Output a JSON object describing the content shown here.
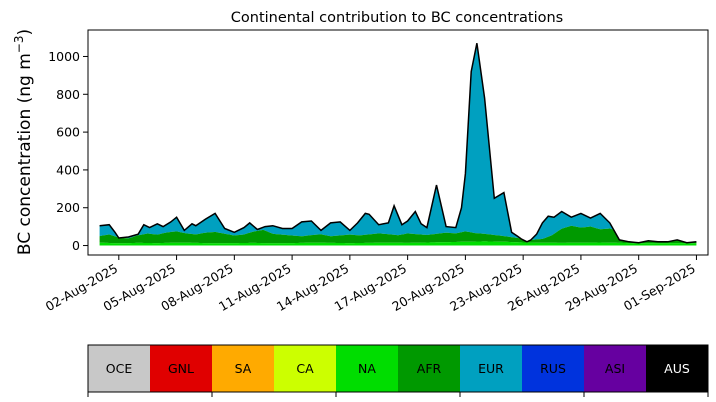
{
  "chart_data": {
    "type": "area",
    "title": "Continental contribution to BC concentrations",
    "ylabel_main": "BC concentration (ng m",
    "ylabel_sup": "−3",
    "ylabel_close": ")",
    "xlabel": "",
    "x_start": "2025-08-01",
    "x_end": "2025-09-01",
    "xlim_days": [
      -0.6,
      31.6
    ],
    "ylim": [
      -50,
      1140
    ],
    "yticks": [
      0,
      200,
      400,
      600,
      800,
      1000
    ],
    "ytick_labels": [
      "0",
      "200",
      "400",
      "600",
      "800",
      "1000"
    ],
    "xticks_day": [
      1,
      4,
      7,
      10,
      13,
      16,
      19,
      22,
      25,
      28,
      31
    ],
    "xtick_labels": [
      "02-Aug-2025",
      "05-Aug-2025",
      "08-Aug-2025",
      "11-Aug-2025",
      "14-Aug-2025",
      "17-Aug-2025",
      "20-Aug-2025",
      "23-Aug-2025",
      "26-Aug-2025",
      "29-Aug-2025",
      "01-Sep-2025"
    ],
    "grid": false,
    "series_order": [
      "NA",
      "AFR",
      "EUR"
    ],
    "series_colors": {
      "NA": "#00dd00",
      "AFR": "#009900",
      "EUR": "#00a0c0"
    },
    "total_line_color": "#000000",
    "total": {
      "t": [
        0,
        0.5,
        0.8,
        1,
        1.5,
        2,
        2.3,
        2.6,
        3,
        3.3,
        3.7,
        4,
        4.4,
        4.8,
        5,
        5.5,
        6,
        6.5,
        7,
        7.5,
        7.8,
        8.2,
        8.6,
        9,
        9.5,
        10,
        10.5,
        11,
        11.5,
        12,
        12.5,
        13,
        13.4,
        13.8,
        14,
        14.5,
        15,
        15.3,
        15.7,
        16,
        16.4,
        16.7,
        17,
        17.5,
        18,
        18.5,
        18.8,
        19,
        19.3,
        19.6,
        20,
        20.5,
        21,
        21.4,
        21.7,
        21.9,
        22,
        22.2,
        22.4,
        22.7,
        23,
        23.3,
        23.6,
        24,
        24.5,
        25,
        25.5,
        26,
        26.5,
        27,
        27.5,
        28,
        28.5,
        29,
        29.5,
        30,
        30.5,
        31
      ],
      "v": [
        105,
        110,
        70,
        40,
        45,
        60,
        110,
        95,
        115,
        100,
        125,
        150,
        80,
        115,
        105,
        140,
        170,
        90,
        70,
        95,
        120,
        85,
        100,
        105,
        90,
        90,
        125,
        130,
        80,
        120,
        125,
        80,
        120,
        170,
        165,
        110,
        120,
        210,
        110,
        130,
        180,
        115,
        95,
        320,
        100,
        95,
        200,
        380,
        920,
        1070,
        780,
        250,
        280,
        70,
        50,
        35,
        30,
        20,
        30,
        60,
        120,
        155,
        150,
        180,
        150,
        170,
        145,
        170,
        120,
        30,
        20,
        15,
        25,
        20,
        20,
        30,
        15,
        20
      ]
    },
    "series": [
      {
        "name": "NA",
        "t": [
          0,
          1,
          2,
          3,
          4,
          5,
          6,
          7,
          8,
          9,
          10,
          11,
          12,
          13,
          14,
          15,
          16,
          17,
          18,
          19,
          20,
          21,
          22,
          23,
          24,
          25,
          26,
          27,
          28,
          29,
          30,
          31
        ],
        "v": [
          15,
          12,
          14,
          13,
          15,
          14,
          12,
          13,
          14,
          12,
          13,
          15,
          14,
          13,
          14,
          15,
          14,
          16,
          18,
          20,
          22,
          20,
          16,
          15,
          14,
          15,
          16,
          14,
          12,
          12,
          13,
          12
        ]
      },
      {
        "name": "AFR",
        "t": [
          0,
          0.5,
          1,
          1.5,
          2,
          2.5,
          3,
          3.5,
          4,
          4.5,
          5,
          5.5,
          6,
          6.5,
          7,
          7.5,
          8,
          8.5,
          9,
          9.5,
          10,
          10.5,
          11,
          11.5,
          12,
          12.5,
          13,
          13.5,
          14,
          14.5,
          15,
          15.5,
          16,
          16.5,
          17,
          17.5,
          18,
          18.5,
          19,
          19.5,
          20,
          20.5,
          21,
          21.5,
          22,
          22.5,
          23,
          23.5,
          24,
          24.5,
          25,
          25.5,
          26,
          26.5,
          27,
          27.5,
          28,
          28.5,
          29,
          29.5,
          30,
          30.5,
          31
        ],
        "v": [
          35,
          45,
          30,
          25,
          40,
          50,
          45,
          55,
          60,
          50,
          45,
          55,
          60,
          50,
          40,
          45,
          60,
          70,
          50,
          45,
          40,
          35,
          40,
          45,
          35,
          40,
          45,
          40,
          45,
          50,
          45,
          40,
          50,
          45,
          40,
          45,
          50,
          45,
          55,
          45,
          40,
          35,
          30,
          25,
          20,
          15,
          20,
          40,
          75,
          90,
          80,
          85,
          70,
          75,
          60,
          20,
          15,
          14,
          15,
          14,
          15,
          14,
          15
        ]
      },
      {
        "name": "EUR",
        "t": [
          0,
          1,
          2,
          3,
          4,
          5,
          6,
          7,
          8,
          9,
          10,
          11,
          12,
          13,
          14,
          15,
          16,
          17,
          18,
          19,
          20,
          21,
          22,
          23,
          24,
          25,
          26,
          27,
          28,
          29,
          30,
          31
        ],
        "v": [
          95,
          40,
          60,
          100,
          140,
          105,
          165,
          75,
          80,
          95,
          90,
          125,
          115,
          110,
          160,
          115,
          120,
          90,
          95,
          375,
          780,
          275,
          65,
          25,
          55,
          150,
          170,
          115,
          25,
          20,
          25,
          20
        ]
      }
    ]
  },
  "legend_bar": {
    "items": [
      {
        "label": "OCE",
        "color": "#c8c8c8",
        "text": "#000000"
      },
      {
        "label": "GNL",
        "color": "#e00000",
        "text": "#000000"
      },
      {
        "label": "SA",
        "color": "#ffaa00",
        "text": "#000000"
      },
      {
        "label": "CA",
        "color": "#ccff00",
        "text": "#000000"
      },
      {
        "label": "NA",
        "color": "#00dd00",
        "text": "#000000"
      },
      {
        "label": "AFR",
        "color": "#009900",
        "text": "#000000"
      },
      {
        "label": "EUR",
        "color": "#00a0c0",
        "text": "#000000"
      },
      {
        "label": "RUS",
        "color": "#0033dd",
        "text": "#000000"
      },
      {
        "label": "ASI",
        "color": "#6600a0",
        "text": "#000000"
      },
      {
        "label": "AUS",
        "color": "#000000",
        "text": "#ffffff"
      }
    ]
  }
}
